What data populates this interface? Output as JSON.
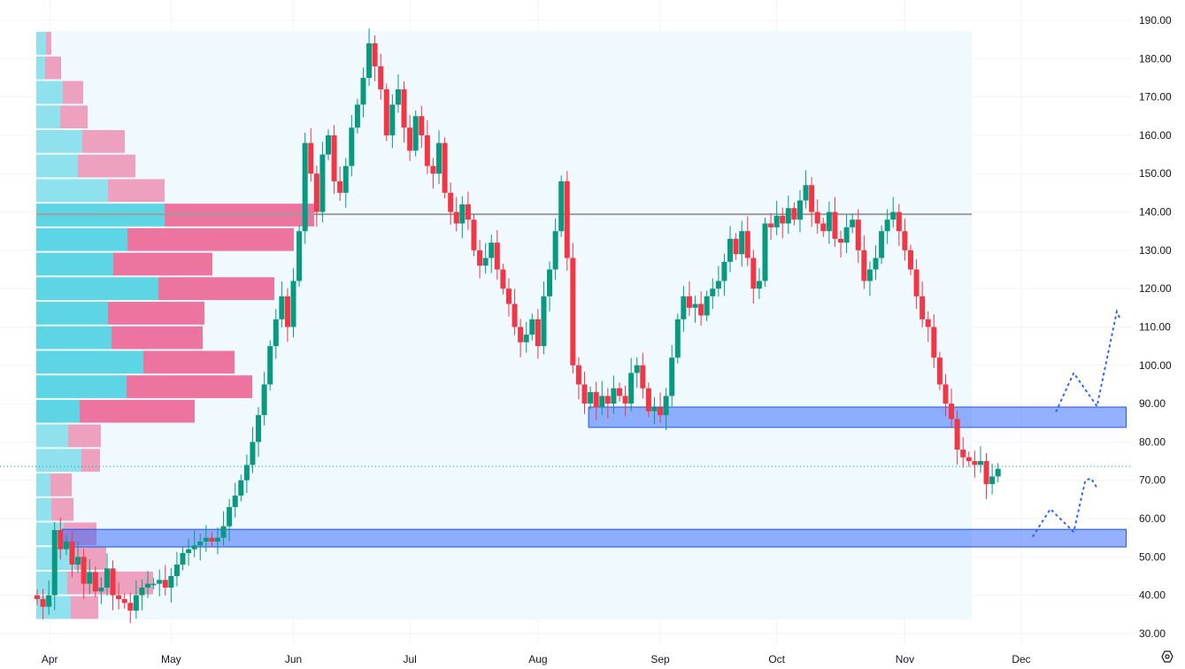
{
  "chart_data": {
    "type": "candlestick",
    "title": "",
    "ylim": [
      30,
      190
    ],
    "y_ticks": [
      "190.00",
      "180.00",
      "170.00",
      "160.00",
      "150.00",
      "140.00",
      "130.00",
      "120.00",
      "110.00",
      "100.00",
      "90.00",
      "80.00",
      "70.00",
      "60.00",
      "50.00",
      "40.00",
      "30.00"
    ],
    "y_tick_values": [
      190,
      180,
      170,
      160,
      150,
      140,
      130,
      120,
      110,
      100,
      90,
      80,
      70,
      60,
      50,
      40,
      30
    ],
    "x_ticks": [
      {
        "label": "Apr",
        "index": 2
      },
      {
        "label": "May",
        "index": 23
      },
      {
        "label": "Jun",
        "index": 44
      },
      {
        "label": "Jul",
        "index": 64
      },
      {
        "label": "Aug",
        "index": 86
      },
      {
        "label": "Sep",
        "index": 107
      },
      {
        "label": "Oct",
        "index": 127
      },
      {
        "label": "Nov",
        "index": 149
      },
      {
        "label": "Dec",
        "index": 169
      }
    ],
    "closes": [
      39,
      37,
      40,
      57,
      52,
      54,
      48,
      50,
      43,
      46,
      41,
      42,
      47,
      40,
      39,
      38,
      36,
      40,
      42,
      43,
      43,
      44,
      42,
      45,
      48,
      51,
      52,
      53,
      54,
      55,
      54,
      55,
      58,
      63,
      66,
      70,
      74,
      80,
      87,
      95,
      105,
      112,
      118,
      110,
      122,
      135,
      158,
      150,
      140,
      155,
      160,
      148,
      145,
      152,
      162,
      168,
      175,
      184,
      178,
      172,
      160,
      168,
      172,
      162,
      156,
      165,
      160,
      152,
      150,
      158,
      145,
      140,
      137,
      142,
      138,
      130,
      126,
      128,
      132,
      125,
      120,
      116,
      110,
      106,
      108,
      112,
      105,
      118,
      125,
      135,
      148,
      128,
      100,
      95,
      90,
      93,
      89,
      92,
      90,
      94,
      92,
      90,
      98,
      100,
      94,
      88,
      89,
      87,
      92,
      102,
      112,
      118,
      115,
      116,
      113,
      118,
      120,
      122,
      127,
      133,
      129,
      135,
      128,
      120,
      122,
      137,
      136,
      139,
      137,
      141,
      138,
      143,
      147,
      140,
      137,
      135,
      140,
      133,
      132,
      136,
      138,
      130,
      122,
      125,
      128,
      135,
      138,
      140,
      135,
      130,
      125,
      118,
      112,
      110,
      102,
      95,
      90,
      86,
      78,
      76,
      75,
      74,
      75,
      69,
      71,
      73
    ],
    "first_open": 40,
    "current_price": 73.6,
    "poc_price": 139.4,
    "up_color": "#089981",
    "down_color": "#f23645",
    "volume_profile": {
      "top_price": 187.2,
      "row_height": 6.4,
      "rows": [
        [
          11,
          6
        ],
        [
          10,
          18
        ],
        [
          30,
          23
        ],
        [
          27,
          31
        ],
        [
          52,
          48
        ],
        [
          47,
          65
        ],
        [
          81,
          64
        ],
        [
          145,
          169
        ],
        [
          103,
          188
        ],
        [
          87,
          112
        ],
        [
          138,
          131
        ],
        [
          81,
          109
        ],
        [
          85,
          103
        ],
        [
          121,
          103
        ],
        [
          102,
          142
        ],
        [
          49,
          130
        ],
        [
          36,
          37
        ],
        [
          51,
          21
        ],
        [
          16,
          24
        ],
        [
          17,
          25
        ],
        [
          31,
          37
        ],
        [
          44,
          35
        ],
        [
          35,
          97
        ],
        [
          39,
          31
        ]
      ],
      "value_area_rows": [
        7,
        15
      ],
      "up_color": "#4dd0e1",
      "down_color": "#ec6595"
    },
    "zones": [
      {
        "name": "resistance-zone",
        "from_index": 94.7,
        "to_index": 187,
        "high": 89.1,
        "low": 83.8
      },
      {
        "name": "support-zone",
        "from_index": 4.3,
        "to_index": 187,
        "high": 57.2,
        "low": 52.6
      }
    ],
    "projections": [
      {
        "name": "upper-projection",
        "points": [
          [
            175,
            88
          ],
          [
            178,
            98
          ],
          [
            182,
            89.3
          ],
          [
            185.4,
            114
          ],
          [
            186,
            112
          ]
        ]
      },
      {
        "name": "lower-projection",
        "points": [
          [
            171,
            55.4
          ],
          [
            174,
            62.5
          ],
          [
            178,
            56.5
          ],
          [
            180,
            70
          ],
          [
            181,
            70.5
          ],
          [
            182,
            68
          ]
        ]
      }
    ]
  },
  "settings_icon": "gear-icon"
}
